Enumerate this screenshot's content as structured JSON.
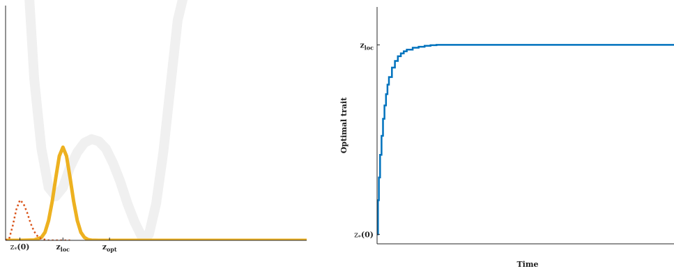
{
  "chart_data": [
    {
      "type": "line",
      "title": "",
      "xlabel": "",
      "ylabel": "",
      "grid": false,
      "xlim": [
        -1.6,
        6.8
      ],
      "ylim": [
        0,
        3.2
      ],
      "x_ticks": [
        {
          "x": -1.2,
          "label": "z",
          "sub": "*",
          "suffix": "(0)",
          "bold": false
        },
        {
          "x": 0.0,
          "label": "z",
          "sub": "loc",
          "suffix": "",
          "bold": true
        },
        {
          "x": 1.3,
          "label": "z",
          "sub": "opt",
          "suffix": "",
          "bold": true
        }
      ],
      "series": [
        {
          "color": "#f0f0f0",
          "style": "solid",
          "x": [
            -0.95,
            -0.8,
            -0.6,
            -0.4,
            -0.2,
            0.0,
            0.2,
            0.4,
            0.6,
            0.8,
            1.0,
            1.2,
            1.4,
            1.6,
            1.8,
            2.0,
            2.2,
            2.4,
            2.6,
            2.8,
            3.0,
            3.2,
            3.4
          ],
          "y": [
            3.4,
            2.2,
            1.25,
            0.72,
            0.6,
            0.72,
            1.0,
            1.2,
            1.33,
            1.38,
            1.35,
            1.25,
            1.05,
            0.8,
            0.5,
            0.25,
            0.05,
            0.08,
            0.5,
            1.2,
            2.1,
            3.0,
            3.4
          ]
        },
        {
          "color": "#EDB120",
          "style": "solid",
          "x": [
            -1.6,
            -1.2,
            -0.8,
            -0.6,
            -0.5,
            -0.4,
            -0.3,
            -0.2,
            -0.1,
            0.0,
            0.1,
            0.2,
            0.3,
            0.4,
            0.5,
            0.6,
            0.7,
            0.8,
            1.0,
            1.2,
            1.5,
            2.0,
            3.0,
            4.0,
            5.0,
            6.8
          ],
          "y": [
            0,
            0,
            0.005,
            0.04,
            0.11,
            0.27,
            0.53,
            0.85,
            1.15,
            1.27,
            1.15,
            0.85,
            0.53,
            0.27,
            0.11,
            0.04,
            0.01,
            0.003,
            0,
            0,
            0,
            0,
            0,
            0,
            0,
            0
          ]
        },
        {
          "color": "#D95319",
          "style": "dotted",
          "x": [
            -1.6,
            -1.5,
            -1.4,
            -1.3,
            -1.2,
            -1.1,
            -1.0,
            -0.9,
            -0.8,
            -0.7,
            -0.6,
            -0.5,
            -0.4,
            -0.3,
            -0.2,
            -0.1,
            0.0,
            0.2
          ],
          "y": [
            0.0,
            0.02,
            0.2,
            0.42,
            0.55,
            0.5,
            0.38,
            0.23,
            0.12,
            0.05,
            0.02,
            0.01,
            0.0,
            0.0,
            0.0,
            0.0,
            0.0,
            0.0
          ]
        }
      ]
    },
    {
      "type": "line",
      "title": "",
      "xlabel": "Time",
      "ylabel": "Optimal trait",
      "grid": false,
      "xlim": [
        0,
        100
      ],
      "ylim": [
        -0.05,
        1.2
      ],
      "y_ticks": [
        {
          "y": 0.0,
          "label": "z",
          "sub": "*",
          "suffix": "(0)",
          "bold": false
        },
        {
          "y": 1.0,
          "label": "z",
          "sub": "loc",
          "suffix": "",
          "bold": true
        }
      ],
      "series": [
        {
          "color": "#0072BD",
          "style": "step",
          "x": [
            0,
            0.3,
            0.6,
            1,
            1.5,
            2,
            2.5,
            3,
            3.5,
            4,
            5,
            6,
            7,
            8,
            9,
            10,
            12,
            14,
            16,
            18,
            20,
            100
          ],
          "y": [
            0,
            0.18,
            0.3,
            0.42,
            0.52,
            0.61,
            0.68,
            0.74,
            0.79,
            0.83,
            0.88,
            0.915,
            0.94,
            0.955,
            0.966,
            0.975,
            0.985,
            0.99,
            0.995,
            0.998,
            1.0,
            1.0
          ]
        }
      ]
    }
  ]
}
